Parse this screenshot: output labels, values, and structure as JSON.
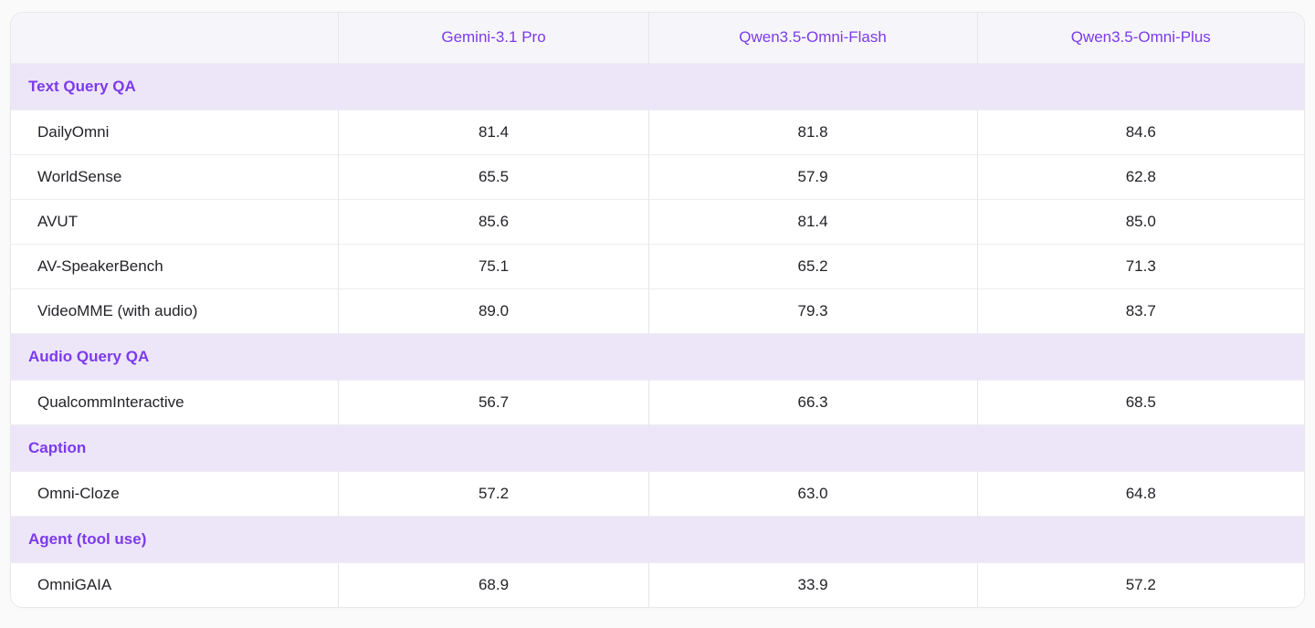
{
  "ui": {
    "colors": {
      "accent_purple": "#7C3AED",
      "section_band_bg": "#EDE6F8",
      "header_band_bg": "#F6F6FA",
      "row_bg": "#FFFFFF",
      "border": "#E7E7EC",
      "value_text": "#232329",
      "page_bg": "#FAFAFB"
    }
  },
  "chart_data": {
    "type": "table",
    "columns": [
      "",
      "Gemini-3.1 Pro",
      "Qwen3.5-Omni-Flash",
      "Qwen3.5-Omni-Plus"
    ],
    "sections": [
      {
        "label": "Text Query QA",
        "rows": [
          {
            "name": "DailyOmni",
            "values": [
              "81.4",
              "81.8",
              "84.6"
            ]
          },
          {
            "name": "WorldSense",
            "values": [
              "65.5",
              "57.9",
              "62.8"
            ]
          },
          {
            "name": "AVUT",
            "values": [
              "85.6",
              "81.4",
              "85.0"
            ]
          },
          {
            "name": "AV-SpeakerBench",
            "values": [
              "75.1",
              "65.2",
              "71.3"
            ]
          },
          {
            "name": "VideoMME (with audio)",
            "values": [
              "89.0",
              "79.3",
              "83.7"
            ]
          }
        ]
      },
      {
        "label": "Audio Query QA",
        "rows": [
          {
            "name": "QualcommInteractive",
            "values": [
              "56.7",
              "66.3",
              "68.5"
            ]
          }
        ]
      },
      {
        "label": "Caption",
        "rows": [
          {
            "name": "Omni-Cloze",
            "values": [
              "57.2",
              "63.0",
              "64.8"
            ]
          }
        ]
      },
      {
        "label": "Agent (tool use)",
        "rows": [
          {
            "name": "OmniGAIA",
            "values": [
              "68.9",
              "33.9",
              "57.2"
            ]
          }
        ]
      }
    ]
  }
}
